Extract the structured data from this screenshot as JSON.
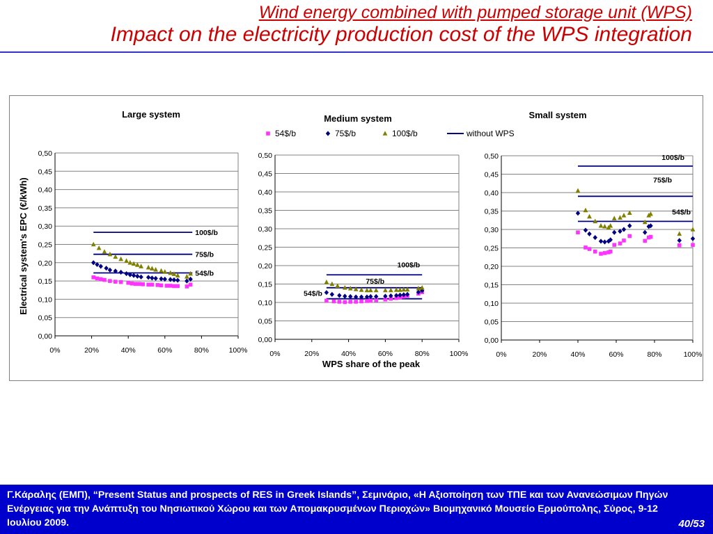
{
  "slide": {
    "title_line1": "Wind energy combined with pumped storage unit (WPS)",
    "title_line2": "Impact on the electricity production cost of the WPS integration"
  },
  "footer": {
    "citation": "Γ.Κάραλης (ΕΜΠ), “Present Status and prospects of RES in Greek Islands”, Σεμινάριο,  «Η Αξιοποίηση των ΤΠΕ και των Ανανεώσιμων Πηγών Ενέργειας για την Ανάπτυξη του Νησιωτικού Χώρου και των Απομακρυσμένων Περιοχών» Βιομηχανικό Μουσείο Ερμούπολης, Σύρος, 9-12 Ιουλίου 2009.",
    "page": "40/53"
  },
  "colors": {
    "title": "#cc0000",
    "rule": "#3333cc",
    "footer_bg": "#0000cc",
    "s54": "#ff33ff",
    "s75": "#000080",
    "s100": "#808000",
    "line": "#000080"
  },
  "legend": [
    {
      "label": "54$/b",
      "marker": "square"
    },
    {
      "label": "75$/b",
      "marker": "diamond"
    },
    {
      "label": "100$/b",
      "marker": "triangle"
    },
    {
      "label": "without WPS",
      "marker": "line"
    }
  ],
  "shared_ylabel": "Electrical system's EPC (€/kWh)",
  "shared_xlabel": "WPS share of the peak",
  "chart_data": [
    {
      "type": "scatter",
      "title": "Large system",
      "ylim": [
        0,
        0.5
      ],
      "xlim": [
        0,
        100
      ],
      "yticks": [
        "0,00",
        "0,05",
        "0,10",
        "0,15",
        "0,20",
        "0,25",
        "0,30",
        "0,35",
        "0,40",
        "0,45",
        "0,50"
      ],
      "xticks": [
        "0%",
        "20%",
        "40%",
        "60%",
        "80%",
        "100%"
      ],
      "grid": true,
      "series": [
        {
          "name": "54$/b",
          "points": [
            [
              21,
              0.16
            ],
            [
              23,
              0.157
            ],
            [
              25,
              0.155
            ],
            [
              27,
              0.153
            ],
            [
              30,
              0.15
            ],
            [
              33,
              0.148
            ],
            [
              36,
              0.147
            ],
            [
              40,
              0.145
            ],
            [
              42,
              0.143
            ],
            [
              44,
              0.142
            ],
            [
              46,
              0.142
            ],
            [
              48,
              0.141
            ],
            [
              51,
              0.14
            ],
            [
              53,
              0.14
            ],
            [
              56,
              0.139
            ],
            [
              58,
              0.138
            ],
            [
              61,
              0.137
            ],
            [
              63,
              0.137
            ],
            [
              65,
              0.136
            ],
            [
              67,
              0.136
            ],
            [
              72,
              0.135
            ],
            [
              74,
              0.14
            ]
          ]
        },
        {
          "name": "75$/b",
          "points": [
            [
              21,
              0.2
            ],
            [
              23,
              0.195
            ],
            [
              25,
              0.19
            ],
            [
              28,
              0.185
            ],
            [
              30,
              0.18
            ],
            [
              33,
              0.177
            ],
            [
              36,
              0.174
            ],
            [
              39,
              0.17
            ],
            [
              41,
              0.167
            ],
            [
              43,
              0.165
            ],
            [
              45,
              0.163
            ],
            [
              47,
              0.161
            ],
            [
              51,
              0.16
            ],
            [
              53,
              0.158
            ],
            [
              55,
              0.157
            ],
            [
              58,
              0.156
            ],
            [
              60,
              0.155
            ],
            [
              63,
              0.154
            ],
            [
              65,
              0.153
            ],
            [
              67,
              0.152
            ],
            [
              72,
              0.15
            ],
            [
              74,
              0.155
            ]
          ]
        },
        {
          "name": "100$/b",
          "points": [
            [
              21,
              0.25
            ],
            [
              24,
              0.24
            ],
            [
              27,
              0.23
            ],
            [
              30,
              0.223
            ],
            [
              33,
              0.216
            ],
            [
              36,
              0.21
            ],
            [
              39,
              0.205
            ],
            [
              41,
              0.2
            ],
            [
              43,
              0.197
            ],
            [
              45,
              0.194
            ],
            [
              47,
              0.19
            ],
            [
              51,
              0.187
            ],
            [
              53,
              0.184
            ],
            [
              55,
              0.181
            ],
            [
              58,
              0.178
            ],
            [
              60,
              0.175
            ],
            [
              63,
              0.172
            ],
            [
              65,
              0.169
            ],
            [
              67,
              0.165
            ],
            [
              72,
              0.162
            ],
            [
              74,
              0.17
            ]
          ]
        }
      ],
      "baselines": [
        {
          "label": "100$/b",
          "y": 0.283,
          "x": [
            21,
            75
          ]
        },
        {
          "label": "75$/b",
          "y": 0.223,
          "x": [
            21,
            75
          ]
        },
        {
          "label": "54$/b",
          "y": 0.172,
          "x": [
            21,
            75
          ]
        }
      ]
    },
    {
      "type": "scatter",
      "title": "Medium system",
      "ylim": [
        0,
        0.5
      ],
      "xlim": [
        0,
        100
      ],
      "yticks": [
        "0,00",
        "0,05",
        "0,10",
        "0,15",
        "0,20",
        "0,25",
        "0,30",
        "0,35",
        "0,40",
        "0,45",
        "0,50"
      ],
      "xticks": [
        "0%",
        "20%",
        "40%",
        "60%",
        "80%",
        "100%"
      ],
      "grid": true,
      "series": [
        {
          "name": "54$/b",
          "points": [
            [
              28,
              0.105
            ],
            [
              32,
              0.103
            ],
            [
              35,
              0.102
            ],
            [
              38,
              0.101
            ],
            [
              41,
              0.102
            ],
            [
              44,
              0.102
            ],
            [
              47,
              0.103
            ],
            [
              50,
              0.104
            ],
            [
              52,
              0.105
            ],
            [
              55,
              0.106
            ],
            [
              60,
              0.108
            ],
            [
              63,
              0.11
            ],
            [
              66,
              0.112
            ],
            [
              68,
              0.114
            ],
            [
              70,
              0.116
            ],
            [
              72,
              0.118
            ],
            [
              78,
              0.124
            ],
            [
              80,
              0.128
            ]
          ]
        },
        {
          "name": "75$/b",
          "points": [
            [
              28,
              0.127
            ],
            [
              31,
              0.122
            ],
            [
              35,
              0.119
            ],
            [
              38,
              0.117
            ],
            [
              41,
              0.116
            ],
            [
              44,
              0.115
            ],
            [
              47,
              0.115
            ],
            [
              50,
              0.115
            ],
            [
              52,
              0.116
            ],
            [
              55,
              0.116
            ],
            [
              60,
              0.117
            ],
            [
              63,
              0.118
            ],
            [
              66,
              0.119
            ],
            [
              68,
              0.12
            ],
            [
              70,
              0.121
            ],
            [
              72,
              0.122
            ],
            [
              78,
              0.128
            ],
            [
              80,
              0.132
            ]
          ]
        },
        {
          "name": "100$/b",
          "points": [
            [
              28,
              0.155
            ],
            [
              31,
              0.15
            ],
            [
              34,
              0.145
            ],
            [
              38,
              0.14
            ],
            [
              41,
              0.138
            ],
            [
              44,
              0.136
            ],
            [
              47,
              0.134
            ],
            [
              50,
              0.133
            ],
            [
              52,
              0.133
            ],
            [
              55,
              0.133
            ],
            [
              60,
              0.133
            ],
            [
              63,
              0.133
            ],
            [
              66,
              0.134
            ],
            [
              68,
              0.134
            ],
            [
              70,
              0.135
            ],
            [
              72,
              0.135
            ],
            [
              78,
              0.138
            ],
            [
              80,
              0.14
            ]
          ]
        }
      ],
      "baselines": [
        {
          "label": "100$/b",
          "y": 0.175,
          "x": [
            28,
            80
          ]
        },
        {
          "label": "75$/b",
          "y": 0.14,
          "x": [
            28,
            80
          ]
        },
        {
          "label": "54$/b",
          "y": 0.11,
          "x": [
            28,
            80
          ]
        }
      ]
    },
    {
      "type": "scatter",
      "title": "Small system",
      "ylim": [
        0,
        0.5
      ],
      "xlim": [
        0,
        100
      ],
      "yticks": [
        "0,00",
        "0,05",
        "0,10",
        "0,15",
        "0,20",
        "0,25",
        "0,30",
        "0,35",
        "0,40",
        "0,45",
        "0,50"
      ],
      "xticks": [
        "0%",
        "20%",
        "40%",
        "60%",
        "80%",
        "100%"
      ],
      "grid": true,
      "series": [
        {
          "name": "54$/b",
          "points": [
            [
              40,
              0.292
            ],
            [
              44,
              0.251
            ],
            [
              46,
              0.247
            ],
            [
              49,
              0.24
            ],
            [
              52,
              0.234
            ],
            [
              54,
              0.236
            ],
            [
              56,
              0.238
            ],
            [
              57,
              0.24
            ],
            [
              59,
              0.258
            ],
            [
              62,
              0.262
            ],
            [
              64,
              0.27
            ],
            [
              67,
              0.282
            ],
            [
              75,
              0.269
            ],
            [
              77,
              0.278
            ],
            [
              78,
              0.28
            ],
            [
              93,
              0.257
            ],
            [
              100,
              0.258
            ]
          ]
        },
        {
          "name": "75$/b",
          "points": [
            [
              40,
              0.344
            ],
            [
              44,
              0.298
            ],
            [
              46,
              0.288
            ],
            [
              49,
              0.278
            ],
            [
              52,
              0.268
            ],
            [
              54,
              0.266
            ],
            [
              56,
              0.268
            ],
            [
              57,
              0.272
            ],
            [
              59,
              0.292
            ],
            [
              62,
              0.295
            ],
            [
              64,
              0.3
            ],
            [
              67,
              0.31
            ],
            [
              75,
              0.292
            ],
            [
              77,
              0.308
            ],
            [
              78,
              0.31
            ],
            [
              93,
              0.27
            ],
            [
              100,
              0.275
            ]
          ]
        },
        {
          "name": "100$/b",
          "points": [
            [
              40,
              0.405
            ],
            [
              44,
              0.352
            ],
            [
              46,
              0.335
            ],
            [
              49,
              0.322
            ],
            [
              52,
              0.31
            ],
            [
              54,
              0.308
            ],
            [
              56,
              0.305
            ],
            [
              57,
              0.31
            ],
            [
              59,
              0.33
            ],
            [
              62,
              0.332
            ],
            [
              64,
              0.338
            ],
            [
              67,
              0.345
            ],
            [
              75,
              0.32
            ],
            [
              77,
              0.338
            ],
            [
              78,
              0.342
            ],
            [
              93,
              0.288
            ],
            [
              100,
              0.3
            ]
          ]
        }
      ],
      "baselines": [
        {
          "label": "100$/b",
          "y": 0.472,
          "x": [
            40,
            100
          ]
        },
        {
          "label": "75$/b",
          "y": 0.39,
          "x": [
            40,
            100
          ]
        },
        {
          "label": "54$/b",
          "y": 0.322,
          "x": [
            40,
            100
          ]
        }
      ]
    }
  ]
}
